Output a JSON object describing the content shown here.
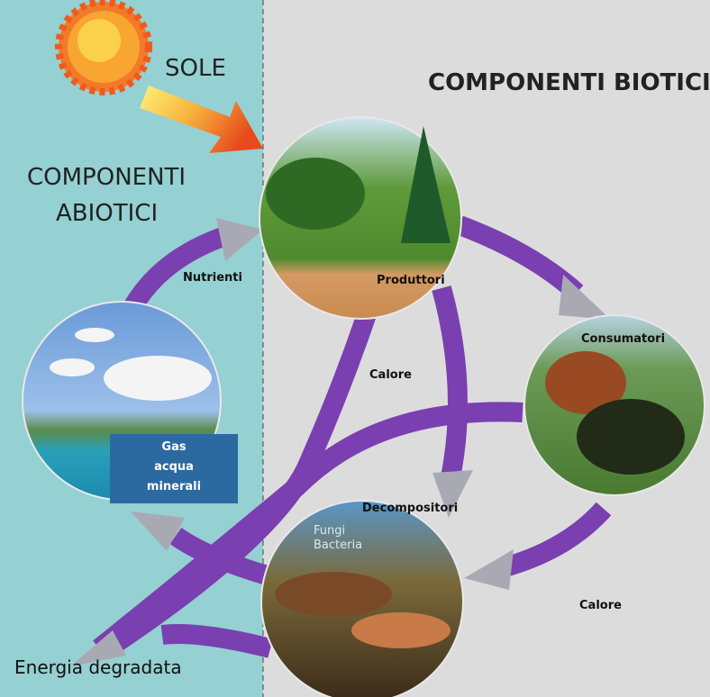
{
  "sun": {
    "label": "SOLE"
  },
  "regions": {
    "abiotic": [
      "COMPONENTI",
      "ABIOTICI"
    ],
    "biotic": "COMPONENTI BIOTICI"
  },
  "nodes": [
    {
      "label": "Produttori"
    },
    {
      "label": "Consumatori"
    },
    {
      "label": "Decompositori",
      "sublabel": [
        "Fungi",
        "Bacteria"
      ]
    },
    {
      "label": [
        "Gas",
        "acqua",
        "minerali"
      ]
    }
  ],
  "flows": [
    {
      "label": "Nutrienti"
    },
    {
      "label": "Calore"
    },
    {
      "label": "Calore"
    },
    {
      "label": "Energia degradata"
    }
  ]
}
